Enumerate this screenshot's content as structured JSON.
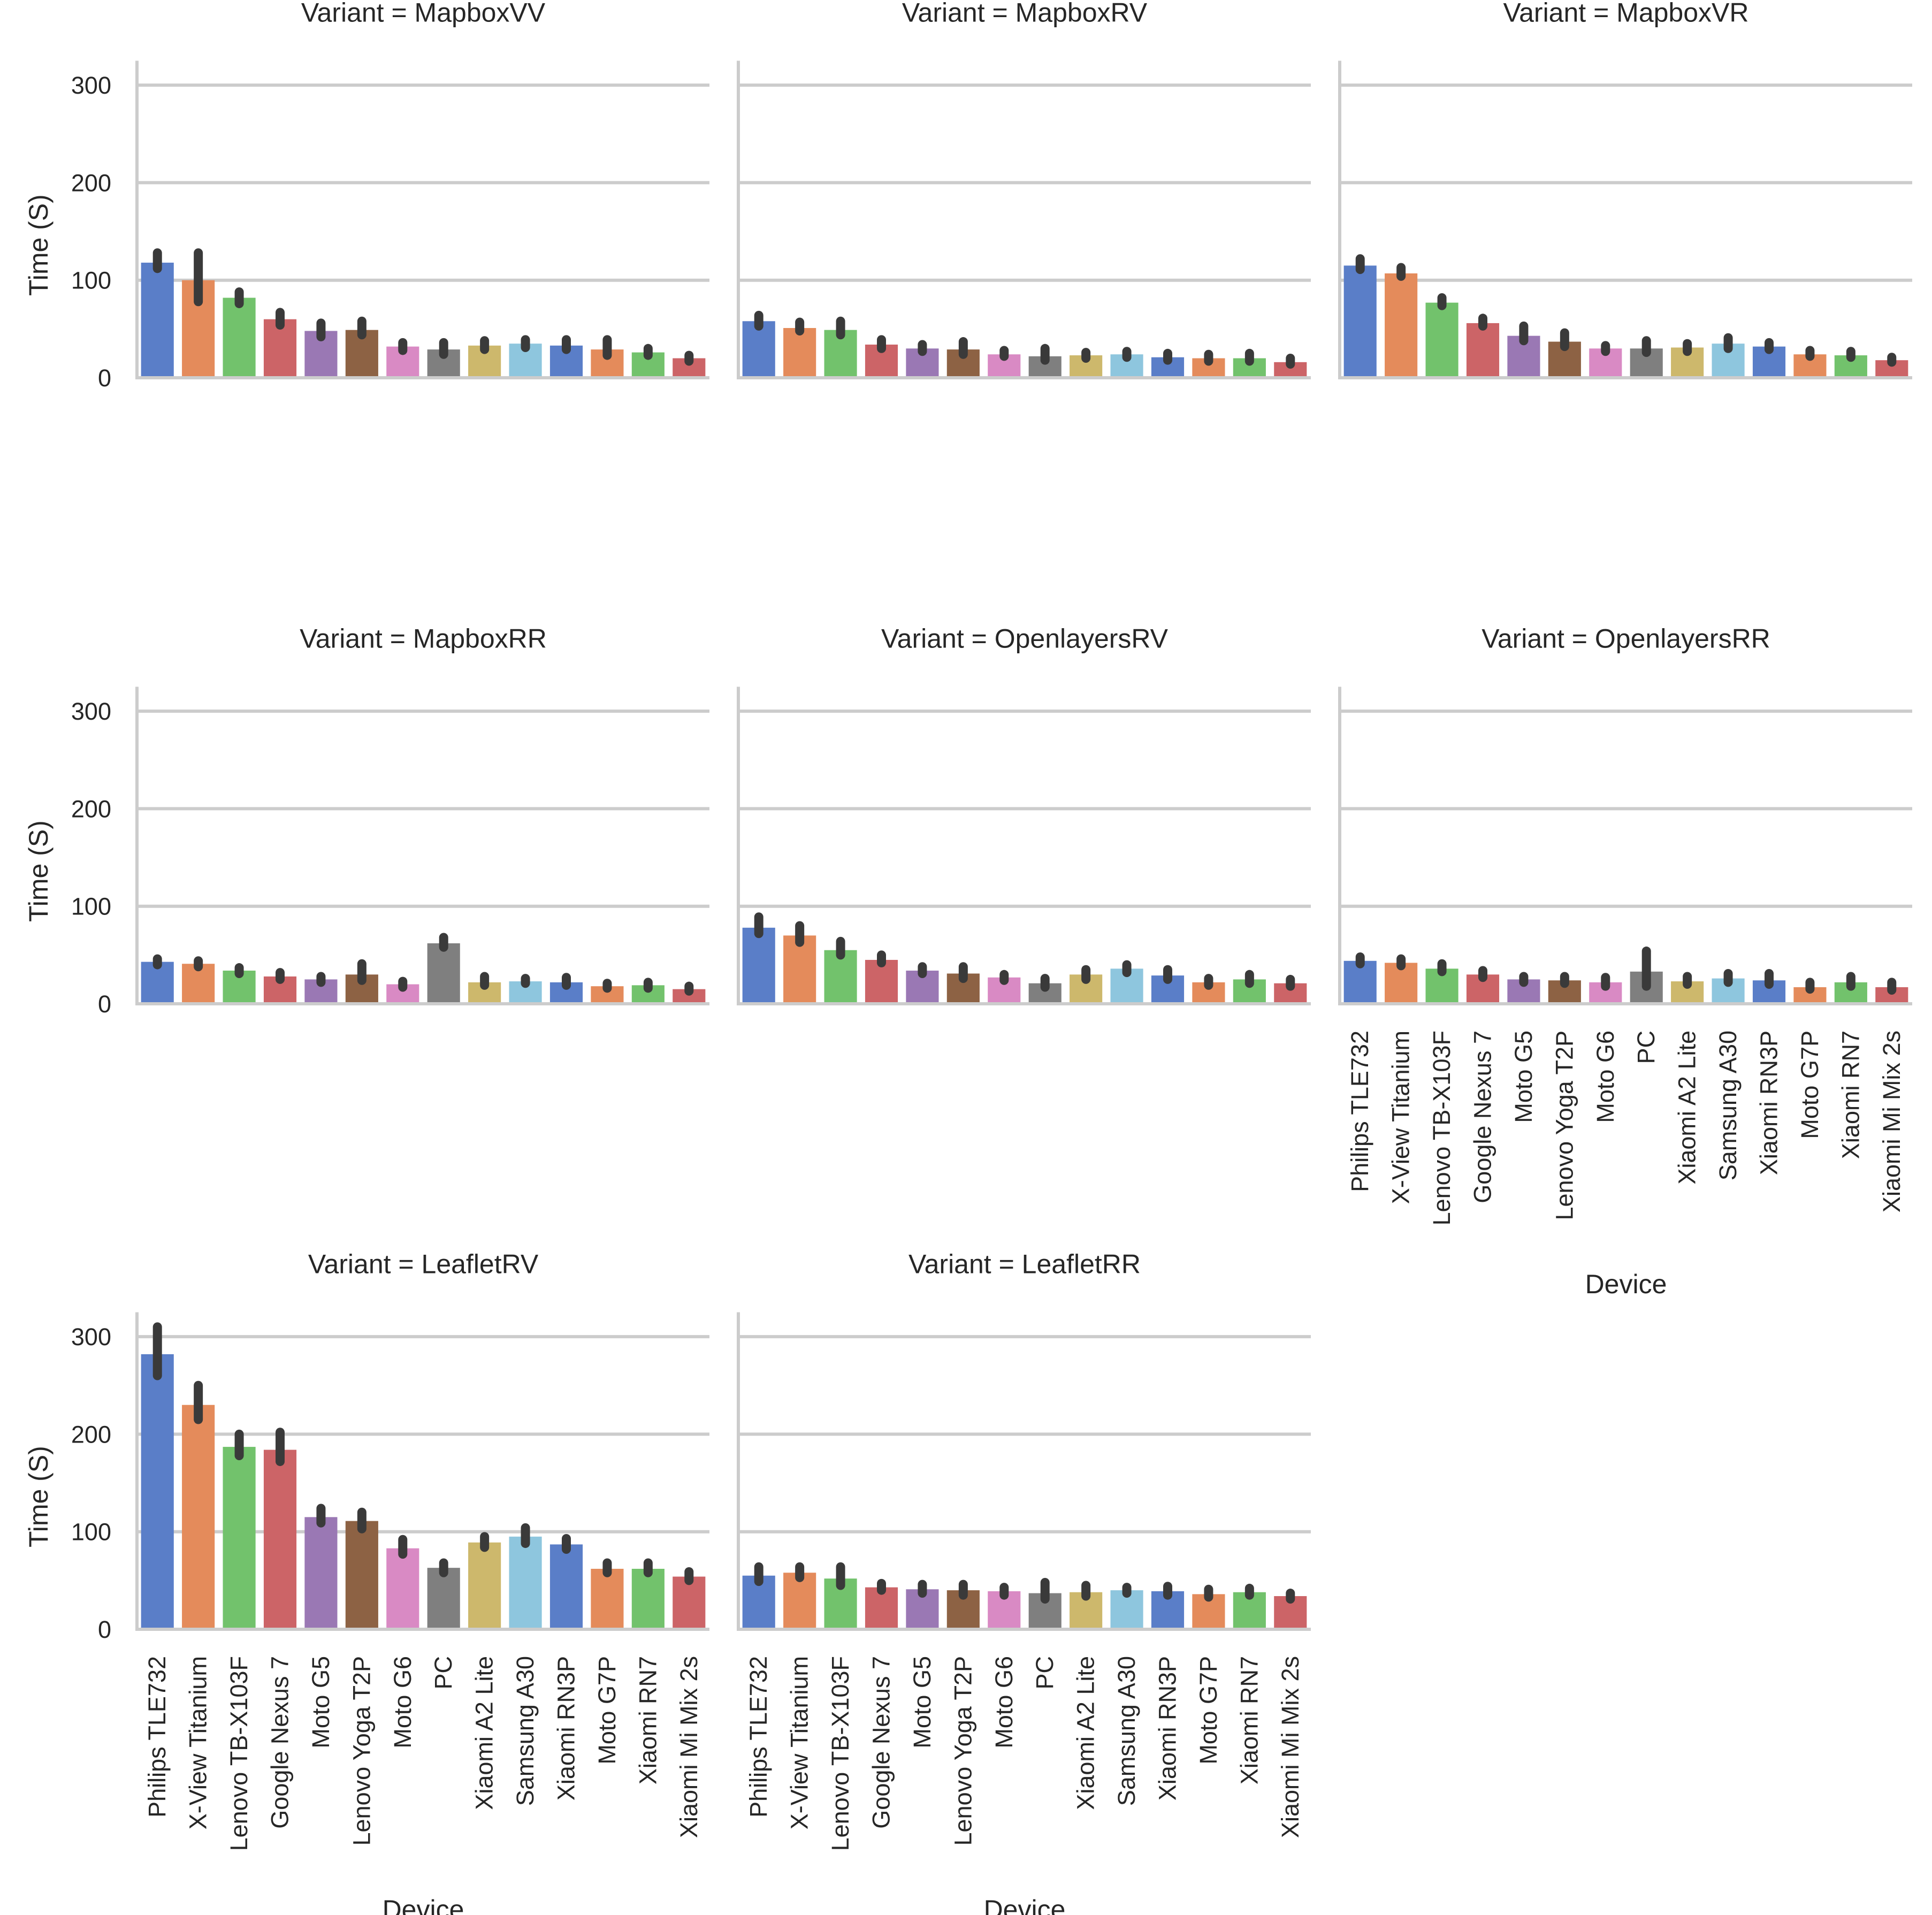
{
  "chart_data": {
    "type": "bar",
    "facet_var": "Variant",
    "xlabel": "Device",
    "ylabel": "Time (S)",
    "ylim": [
      0,
      325
    ],
    "yticks": [
      0,
      100,
      200,
      300
    ],
    "grid": true,
    "categories": [
      "Philips TLE732",
      "X-View Titanium",
      "Lenovo TB-X103F",
      "Google Nexus 7",
      "Moto G5",
      "Lenovo Yoga T2P",
      "Moto G6",
      "PC",
      "Xiaomi A2 Lite",
      "Samsung A30",
      "Xiaomi RN3P",
      "Moto G7P",
      "Xiaomi RN7",
      "Xiaomi Mi Mix 2s"
    ],
    "palette": [
      "#5a7ec8",
      "#e48b5b",
      "#72c26c",
      "#cc6467",
      "#9a78b4",
      "#8d6244",
      "#d98ac4",
      "#7f7f7f",
      "#cdb86c",
      "#8ec6de",
      "#5a7ec8",
      "#e48b5b",
      "#72c26c",
      "#cc6467"
    ],
    "error_bar_color": "#3a3a3a",
    "panels": [
      {
        "title": "Variant = MapboxVV",
        "values": [
          118,
          100,
          82,
          60,
          48,
          49,
          32,
          29,
          33,
          35,
          33,
          29,
          26,
          20
        ],
        "ci": [
          [
            112,
            128
          ],
          [
            78,
            128
          ],
          [
            76,
            88
          ],
          [
            54,
            67
          ],
          [
            42,
            56
          ],
          [
            44,
            58
          ],
          [
            28,
            36
          ],
          [
            24,
            36
          ],
          [
            29,
            38
          ],
          [
            31,
            39
          ],
          [
            29,
            39
          ],
          [
            23,
            39
          ],
          [
            23,
            30
          ],
          [
            17,
            23
          ]
        ]
      },
      {
        "title": "Variant = MapboxRV",
        "values": [
          58,
          51,
          49,
          34,
          30,
          29,
          24,
          22,
          23,
          24,
          21,
          20,
          20,
          16
        ],
        "ci": [
          [
            53,
            64
          ],
          [
            48,
            57
          ],
          [
            44,
            58
          ],
          [
            30,
            39
          ],
          [
            27,
            34
          ],
          [
            24,
            37
          ],
          [
            22,
            28
          ],
          [
            18,
            30
          ],
          [
            20,
            26
          ],
          [
            21,
            27
          ],
          [
            18,
            25
          ],
          [
            17,
            24
          ],
          [
            17,
            25
          ],
          [
            14,
            20
          ]
        ]
      },
      {
        "title": "Variant = MapboxVR",
        "values": [
          115,
          107,
          77,
          56,
          43,
          37,
          30,
          30,
          31,
          35,
          32,
          24,
          23,
          18
        ],
        "ci": [
          [
            111,
            122
          ],
          [
            104,
            113
          ],
          [
            74,
            82
          ],
          [
            53,
            61
          ],
          [
            38,
            53
          ],
          [
            32,
            46
          ],
          [
            27,
            33
          ],
          [
            26,
            38
          ],
          [
            27,
            35
          ],
          [
            30,
            41
          ],
          [
            29,
            36
          ],
          [
            22,
            28
          ],
          [
            21,
            27
          ],
          [
            16,
            21
          ]
        ]
      },
      {
        "title": "Variant = MapboxRR",
        "values": [
          43,
          41,
          34,
          28,
          25,
          30,
          20,
          62,
          22,
          23,
          22,
          18,
          19,
          15
        ],
        "ci": [
          [
            40,
            46
          ],
          [
            38,
            44
          ],
          [
            31,
            37
          ],
          [
            25,
            32
          ],
          [
            22,
            28
          ],
          [
            24,
            41
          ],
          [
            17,
            23
          ],
          [
            58,
            68
          ],
          [
            19,
            28
          ],
          [
            21,
            26
          ],
          [
            19,
            27
          ],
          [
            16,
            21
          ],
          [
            16,
            22
          ],
          [
            13,
            18
          ]
        ]
      },
      {
        "title": "Variant = OpenlayersRV",
        "values": [
          78,
          70,
          55,
          45,
          34,
          31,
          27,
          21,
          30,
          36,
          29,
          22,
          25,
          21
        ],
        "ci": [
          [
            72,
            89
          ],
          [
            63,
            80
          ],
          [
            50,
            64
          ],
          [
            42,
            50
          ],
          [
            31,
            38
          ],
          [
            26,
            38
          ],
          [
            24,
            30
          ],
          [
            17,
            26
          ],
          [
            25,
            35
          ],
          [
            32,
            40
          ],
          [
            25,
            35
          ],
          [
            19,
            26
          ],
          [
            21,
            30
          ],
          [
            18,
            25
          ]
        ]
      },
      {
        "title": "Variant = OpenlayersRR",
        "values": [
          44,
          42,
          36,
          30,
          25,
          24,
          22,
          33,
          23,
          26,
          24,
          17,
          22,
          17
        ],
        "ci": [
          [
            41,
            48
          ],
          [
            39,
            46
          ],
          [
            33,
            41
          ],
          [
            27,
            34
          ],
          [
            22,
            28
          ],
          [
            21,
            28
          ],
          [
            18,
            27
          ],
          [
            18,
            54
          ],
          [
            20,
            28
          ],
          [
            22,
            31
          ],
          [
            20,
            31
          ],
          [
            15,
            22
          ],
          [
            18,
            28
          ],
          [
            14,
            22
          ]
        ]
      },
      {
        "title": "Variant = LeafletRV",
        "values": [
          282,
          230,
          187,
          184,
          115,
          111,
          83,
          63,
          89,
          95,
          87,
          62,
          62,
          54
        ],
        "ci": [
          [
            260,
            310
          ],
          [
            215,
            250
          ],
          [
            178,
            200
          ],
          [
            172,
            202
          ],
          [
            109,
            124
          ],
          [
            103,
            120
          ],
          [
            77,
            92
          ],
          [
            58,
            68
          ],
          [
            84,
            95
          ],
          [
            88,
            104
          ],
          [
            82,
            93
          ],
          [
            58,
            68
          ],
          [
            58,
            68
          ],
          [
            50,
            59
          ]
        ]
      },
      {
        "title": "Variant = LeafletRR",
        "values": [
          55,
          58,
          52,
          43,
          41,
          40,
          39,
          37,
          38,
          40,
          39,
          36,
          38,
          34
        ],
        "ci": [
          [
            49,
            64
          ],
          [
            53,
            64
          ],
          [
            45,
            64
          ],
          [
            40,
            47
          ],
          [
            37,
            46
          ],
          [
            35,
            46
          ],
          [
            35,
            43
          ],
          [
            31,
            48
          ],
          [
            34,
            45
          ],
          [
            37,
            43
          ],
          [
            35,
            44
          ],
          [
            33,
            41
          ],
          [
            35,
            42
          ],
          [
            31,
            37
          ]
        ]
      }
    ]
  }
}
